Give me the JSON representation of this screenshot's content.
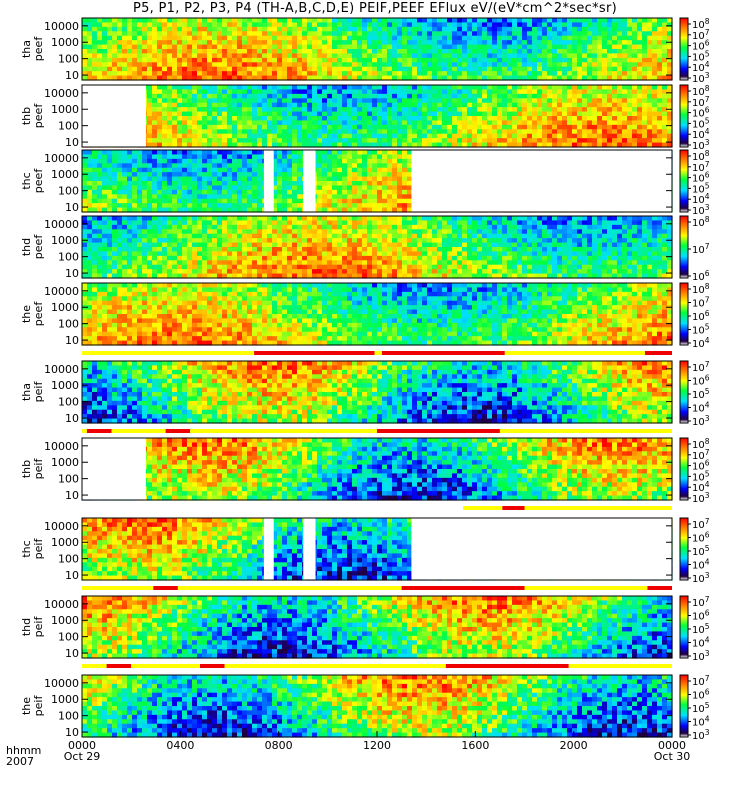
{
  "title": "P5, P1, P2, P3, P4 (TH-A,B,C,D,E) PEIF,PEEF EFlux eV/(eV*cm^2*sec*sr)",
  "footer": {
    "line1": "hhmm",
    "line2": "2007"
  },
  "x_ticks": [
    {
      "label": "0000",
      "sublabel": "Oct 29",
      "value": 0
    },
    {
      "label": "0400",
      "sublabel": "",
      "value": 4
    },
    {
      "label": "0800",
      "sublabel": "",
      "value": 8
    },
    {
      "label": "1200",
      "sublabel": "",
      "value": 12
    },
    {
      "label": "1600",
      "sublabel": "",
      "value": 16
    },
    {
      "label": "2000",
      "sublabel": "",
      "value": 20
    },
    {
      "label": "0000",
      "sublabel": "Oct 30",
      "value": 24
    }
  ],
  "chart_data": {
    "type": "heatmap",
    "x_unit": "hours UT",
    "xlim": [
      0,
      24
    ],
    "y_scale": "log",
    "ylim": [
      5,
      30000
    ],
    "y_ticks": [
      "10",
      "100",
      "1000",
      "10000"
    ],
    "panels": [
      {
        "ylabel_line1": "tha",
        "ylabel_line2": "peef",
        "cbar_labels": [
          "10^8",
          "10^7",
          "10^6",
          "10^5",
          "10^4",
          "10^3"
        ],
        "data_gaps": [],
        "mode_bar": []
      },
      {
        "ylabel_line1": "thb",
        "ylabel_line2": "peef",
        "cbar_labels": [
          "10^8",
          "10^7",
          "10^6",
          "10^5",
          "10^4",
          "10^3"
        ],
        "data_gaps": [
          [
            0,
            2.6
          ]
        ],
        "mode_bar": []
      },
      {
        "ylabel_line1": "thc",
        "ylabel_line2": "peef",
        "cbar_labels": [
          "10^8",
          "10^7",
          "10^6",
          "10^5",
          "10^4",
          "10^3"
        ],
        "data_gaps": [
          [
            7.4,
            7.8
          ],
          [
            9.0,
            9.5
          ],
          [
            13.4,
            24
          ]
        ],
        "mode_bar": []
      },
      {
        "ylabel_line1": "thd",
        "ylabel_line2": "peef",
        "cbar_labels": [
          "10^8",
          "10^7",
          "10^6"
        ],
        "data_gaps": [],
        "mode_bar": []
      },
      {
        "ylabel_line1": "the",
        "ylabel_line2": "peef",
        "cbar_labels": [
          "10^8",
          "10^7",
          "10^6",
          "10^5",
          "10^4"
        ],
        "data_gaps": [],
        "mode_bar": [
          [
            0,
            7,
            "yellow"
          ],
          [
            7,
            11.9,
            "red"
          ],
          [
            11.9,
            12.2,
            "yellow"
          ],
          [
            12.2,
            17.2,
            "red"
          ],
          [
            17.2,
            22.9,
            "yellow"
          ],
          [
            22.9,
            24,
            "red"
          ]
        ]
      },
      {
        "ylabel_line1": "tha",
        "ylabel_line2": "peif",
        "cbar_labels": [
          "10^7",
          "10^6",
          "10^5",
          "10^4",
          "10^3"
        ],
        "data_gaps": [],
        "mode_bar": [
          [
            0,
            0.2,
            "yellow"
          ],
          [
            0.2,
            1.2,
            "red"
          ],
          [
            1.2,
            3.4,
            "yellow"
          ],
          [
            3.4,
            4.4,
            "red"
          ],
          [
            4.4,
            12.0,
            "yellow"
          ],
          [
            12.0,
            17.0,
            "red"
          ],
          [
            17.0,
            24,
            "yellow"
          ]
        ]
      },
      {
        "ylabel_line1": "thb",
        "ylabel_line2": "peif",
        "cbar_labels": [
          "10^8",
          "10^7",
          "10^6",
          "10^5",
          "10^4",
          "10^3"
        ],
        "data_gaps": [
          [
            0,
            2.6
          ]
        ],
        "mode_bar": [
          [
            15.5,
            17.1,
            "yellow"
          ],
          [
            17.1,
            18.0,
            "red"
          ],
          [
            18.0,
            24,
            "yellow"
          ]
        ]
      },
      {
        "ylabel_line1": "thc",
        "ylabel_line2": "peif",
        "cbar_labels": [
          "10^7",
          "10^6",
          "10^5",
          "10^4",
          "10^3"
        ],
        "data_gaps": [
          [
            7.4,
            7.8
          ],
          [
            9.0,
            9.5
          ],
          [
            13.4,
            24
          ]
        ],
        "mode_bar": [
          [
            0,
            2.9,
            "yellow"
          ],
          [
            2.9,
            3.9,
            "red"
          ],
          [
            3.9,
            13.0,
            "yellow"
          ],
          [
            13.0,
            18.0,
            "red"
          ],
          [
            18.0,
            23.0,
            "yellow"
          ],
          [
            23.0,
            24,
            "red"
          ]
        ]
      },
      {
        "ylabel_line1": "thd",
        "ylabel_line2": "peif",
        "cbar_labels": [
          "10^7",
          "10^6",
          "10^5",
          "10^4",
          "10^3"
        ],
        "data_gaps": [],
        "mode_bar": [
          [
            0,
            1.0,
            "yellow"
          ],
          [
            1.0,
            2.0,
            "red"
          ],
          [
            2.0,
            4.8,
            "yellow"
          ],
          [
            4.8,
            5.8,
            "red"
          ],
          [
            5.8,
            14.8,
            "yellow"
          ],
          [
            14.8,
            19.8,
            "red"
          ],
          [
            19.8,
            24,
            "yellow"
          ]
        ]
      },
      {
        "ylabel_line1": "the",
        "ylabel_line2": "peif",
        "cbar_labels": [
          "10^7",
          "10^6",
          "10^5",
          "10^4",
          "10^3"
        ],
        "data_gaps": [],
        "mode_bar": []
      }
    ]
  }
}
